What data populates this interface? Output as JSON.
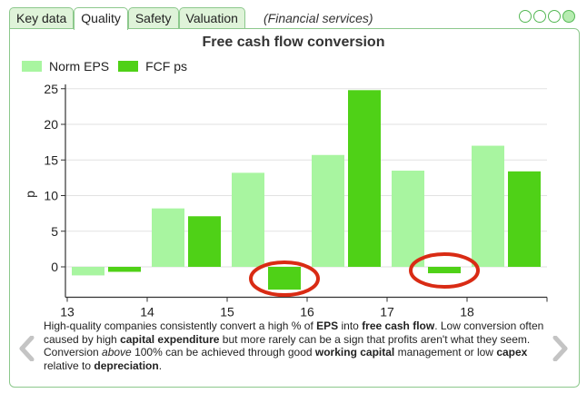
{
  "tabs": [
    {
      "label": "Key data",
      "active": false
    },
    {
      "label": "Quality",
      "active": true
    },
    {
      "label": "Safety",
      "active": false
    },
    {
      "label": "Valuation",
      "active": false
    }
  ],
  "subtitle": "(Financial services)",
  "page_indicator": {
    "total": 4,
    "current": 4
  },
  "colors": {
    "norm_eps": "#a8f5a0",
    "fcf_ps": "#4fd117",
    "highlight": "#d92b14",
    "border": "#8cc88c"
  },
  "caption": {
    "p1_a": "High-quality companies consistently convert a high % of ",
    "p1_eps": "EPS",
    "p1_b": " into ",
    "p1_fcf": "free cash flow",
    "p1_c": ". Low conversion often caused by high ",
    "p1_capex": "capital expenditure",
    "p1_d": " but more rarely can be a sign that profits aren't what they seem. Conversion ",
    "p1_above": "above",
    "p1_e": " 100% can be achieved through good ",
    "p1_wc": "working capital",
    "p1_f": " management or low ",
    "p1_lowcapex": "capex",
    "p1_g": " relative to ",
    "p1_dep": "depreciation",
    "p1_h": "."
  },
  "chart_data": {
    "type": "bar",
    "title": "Free cash flow conversion",
    "ylabel": "p",
    "xlabel": "",
    "categories": [
      "13",
      "14",
      "15",
      "16",
      "17",
      "18"
    ],
    "x_ticks": [
      "13",
      "14",
      "15",
      "16",
      "17",
      "18"
    ],
    "y_ticks": [
      "25",
      "20",
      "15",
      "10",
      "5",
      "0"
    ],
    "ylim": [
      -3.5,
      26
    ],
    "grid": true,
    "legend_position": "top-left",
    "series": [
      {
        "name": "Norm EPS",
        "values": [
          -1.2,
          8.2,
          13.2,
          15.7,
          13.5,
          17.0
        ]
      },
      {
        "name": "FCF ps",
        "values": [
          -0.7,
          7.1,
          -3.2,
          24.8,
          -0.9,
          13.4
        ]
      }
    ],
    "annotations": [
      {
        "type": "circle",
        "target": "FCF ps",
        "category": "15"
      },
      {
        "type": "circle",
        "target": "FCF ps",
        "category": "17"
      }
    ]
  }
}
